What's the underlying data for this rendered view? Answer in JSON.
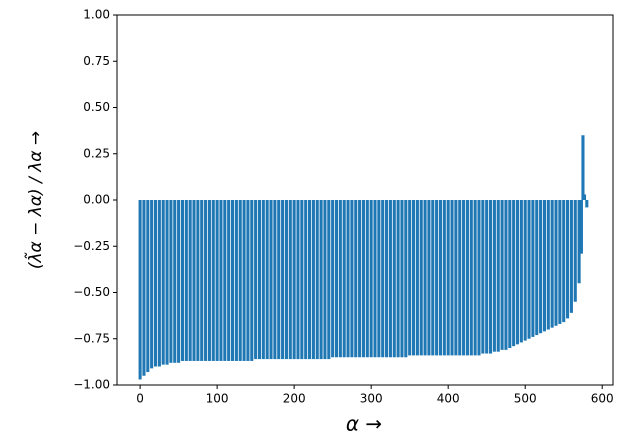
{
  "chart_data": {
    "type": "bar",
    "x_label": "α →",
    "y_label": "(λ̃α − λα) / λα →",
    "color": "#1f77b4",
    "x": [
      0,
      5,
      10,
      15,
      20,
      25,
      30,
      35,
      40,
      45,
      50,
      55,
      60,
      65,
      70,
      75,
      80,
      85,
      90,
      95,
      100,
      105,
      110,
      115,
      120,
      125,
      130,
      135,
      140,
      145,
      150,
      155,
      160,
      165,
      170,
      175,
      180,
      185,
      190,
      195,
      200,
      205,
      210,
      215,
      220,
      225,
      230,
      235,
      240,
      245,
      250,
      255,
      260,
      265,
      270,
      275,
      280,
      285,
      290,
      295,
      300,
      305,
      310,
      315,
      320,
      325,
      330,
      335,
      340,
      345,
      350,
      355,
      360,
      365,
      370,
      375,
      380,
      385,
      390,
      395,
      400,
      405,
      410,
      415,
      420,
      425,
      430,
      435,
      440,
      445,
      450,
      455,
      460,
      465,
      470,
      475,
      480,
      485,
      490,
      495,
      500,
      505,
      510,
      515,
      520,
      525,
      530,
      535,
      540,
      545,
      550,
      555,
      560,
      565,
      570,
      573,
      575,
      577,
      580
    ],
    "values": [
      -0.97,
      -0.95,
      -0.93,
      -0.91,
      -0.9,
      -0.9,
      -0.89,
      -0.89,
      -0.88,
      -0.88,
      -0.88,
      -0.87,
      -0.87,
      -0.87,
      -0.87,
      -0.87,
      -0.87,
      -0.87,
      -0.87,
      -0.87,
      -0.87,
      -0.87,
      -0.87,
      -0.87,
      -0.87,
      -0.87,
      -0.87,
      -0.87,
      -0.87,
      -0.87,
      -0.86,
      -0.86,
      -0.86,
      -0.86,
      -0.86,
      -0.86,
      -0.86,
      -0.86,
      -0.86,
      -0.86,
      -0.86,
      -0.86,
      -0.86,
      -0.86,
      -0.86,
      -0.86,
      -0.86,
      -0.86,
      -0.86,
      -0.86,
      -0.85,
      -0.85,
      -0.85,
      -0.85,
      -0.85,
      -0.85,
      -0.85,
      -0.85,
      -0.85,
      -0.85,
      -0.85,
      -0.85,
      -0.85,
      -0.85,
      -0.85,
      -0.85,
      -0.85,
      -0.85,
      -0.85,
      -0.85,
      -0.84,
      -0.84,
      -0.84,
      -0.84,
      -0.84,
      -0.84,
      -0.84,
      -0.84,
      -0.84,
      -0.84,
      -0.84,
      -0.84,
      -0.84,
      -0.84,
      -0.84,
      -0.84,
      -0.84,
      -0.84,
      -0.84,
      -0.83,
      -0.83,
      -0.83,
      -0.82,
      -0.82,
      -0.81,
      -0.81,
      -0.8,
      -0.79,
      -0.78,
      -0.77,
      -0.76,
      -0.75,
      -0.74,
      -0.73,
      -0.72,
      -0.71,
      -0.7,
      -0.69,
      -0.68,
      -0.67,
      -0.66,
      -0.64,
      -0.61,
      -0.55,
      -0.45,
      -0.29,
      0.35,
      0.03,
      -0.04
    ],
    "xlim": [
      -30,
      614
    ],
    "xticks": [
      0,
      100,
      200,
      300,
      400,
      500,
      600
    ],
    "ylim": [
      -1,
      1
    ],
    "yticks": [
      {
        "value": -1,
        "label": "−1.00"
      },
      {
        "value": -0.75,
        "label": "−0.75"
      },
      {
        "value": -0.5,
        "label": "−0.50"
      },
      {
        "value": -0.25,
        "label": "−0.25"
      },
      {
        "value": 0,
        "label": "0.00"
      },
      {
        "value": 0.25,
        "label": "0.25"
      },
      {
        "value": 0.5,
        "label": "0.50"
      },
      {
        "value": 0.75,
        "label": "0.75"
      },
      {
        "value": 1,
        "label": "1.00"
      }
    ]
  }
}
